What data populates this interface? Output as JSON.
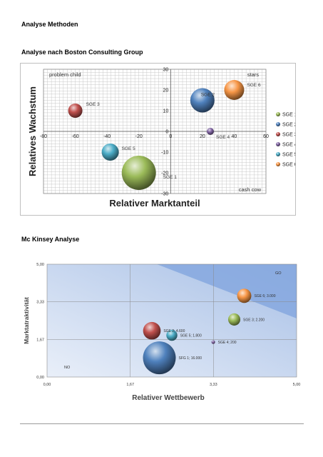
{
  "document": {
    "heading_main": "Analyse Methoden",
    "heading_bcg": "Analyse nach Boston Consulting Group",
    "heading_mckinsey": "Mc Kinsey Analyse"
  },
  "chart_data": [
    {
      "type": "scatter",
      "variant": "bubble",
      "title": "",
      "xlabel": "Relativer Marktanteil",
      "ylabel": "Relatives Wachstum",
      "xlim": [
        -80,
        60
      ],
      "ylim": [
        -30,
        30
      ],
      "x_ticks": [
        -80,
        -60,
        -40,
        -20,
        0,
        20,
        40,
        60
      ],
      "y_ticks": [
        -30,
        -20,
        -10,
        0,
        10,
        20,
        30
      ],
      "grid": true,
      "legend_position": "right",
      "quadrant_labels": {
        "top_left": "problem child",
        "top_right": "stars",
        "bottom_right": "cash cow"
      },
      "series": [
        {
          "name": "SGE 1",
          "label": "SGE 1",
          "x": -20,
          "y": -20,
          "size": 24,
          "color": "#9bbb59"
        },
        {
          "name": "SGE 2",
          "label": "SGE 2",
          "x": 20,
          "y": 15,
          "size": 17,
          "color": "#4f81bd"
        },
        {
          "name": "SGE 3",
          "label": "SGE 3",
          "x": -60,
          "y": 10,
          "size": 10,
          "color": "#c0504d"
        },
        {
          "name": "SGE 4",
          "label": "SGE 4",
          "x": 25,
          "y": 0,
          "size": 5,
          "color": "#8064a2"
        },
        {
          "name": "SGE 5",
          "label": "SGE 5",
          "x": -38,
          "y": -10,
          "size": 12,
          "color": "#4bacc6"
        },
        {
          "name": "SGE 6",
          "label": "SGE 6",
          "x": 40,
          "y": 20,
          "size": 14,
          "color": "#f79646"
        }
      ]
    },
    {
      "type": "scatter",
      "variant": "bubble",
      "title": "",
      "xlabel": "Relativer Wettbewerb",
      "ylabel": "Marktatraktivität",
      "xlim": [
        0,
        5
      ],
      "ylim": [
        0,
        5
      ],
      "x_ticks": [
        "0,00",
        "1,67",
        "3,33",
        "5,00"
      ],
      "y_ticks": [
        "0,00",
        "1,67",
        "3,33",
        "5,00"
      ],
      "grid": true,
      "zone_labels": {
        "go": "GO",
        "no": "NO"
      },
      "series": [
        {
          "label": "SFG 1; 16.000",
          "x": 2.25,
          "y": 0.85,
          "size": 16000,
          "color": "#4f81bd"
        },
        {
          "label": "SGE 2; 4.600",
          "x": 2.1,
          "y": 2.05,
          "size": 4600,
          "color": "#c0504d"
        },
        {
          "label": "SGE 3; 2.200",
          "x": 3.75,
          "y": 2.55,
          "size": 2200,
          "color": "#9bbb59"
        },
        {
          "label": "SGE 4; 200",
          "x": 3.33,
          "y": 1.55,
          "size": 200,
          "color": "#8064a2"
        },
        {
          "label": "SGE 5; 1.800",
          "x": 2.5,
          "y": 1.85,
          "size": 1800,
          "color": "#4bacc6"
        },
        {
          "label": "SGE 6; 3.000",
          "x": 3.95,
          "y": 3.6,
          "size": 3000,
          "color": "#f79646"
        }
      ]
    }
  ]
}
